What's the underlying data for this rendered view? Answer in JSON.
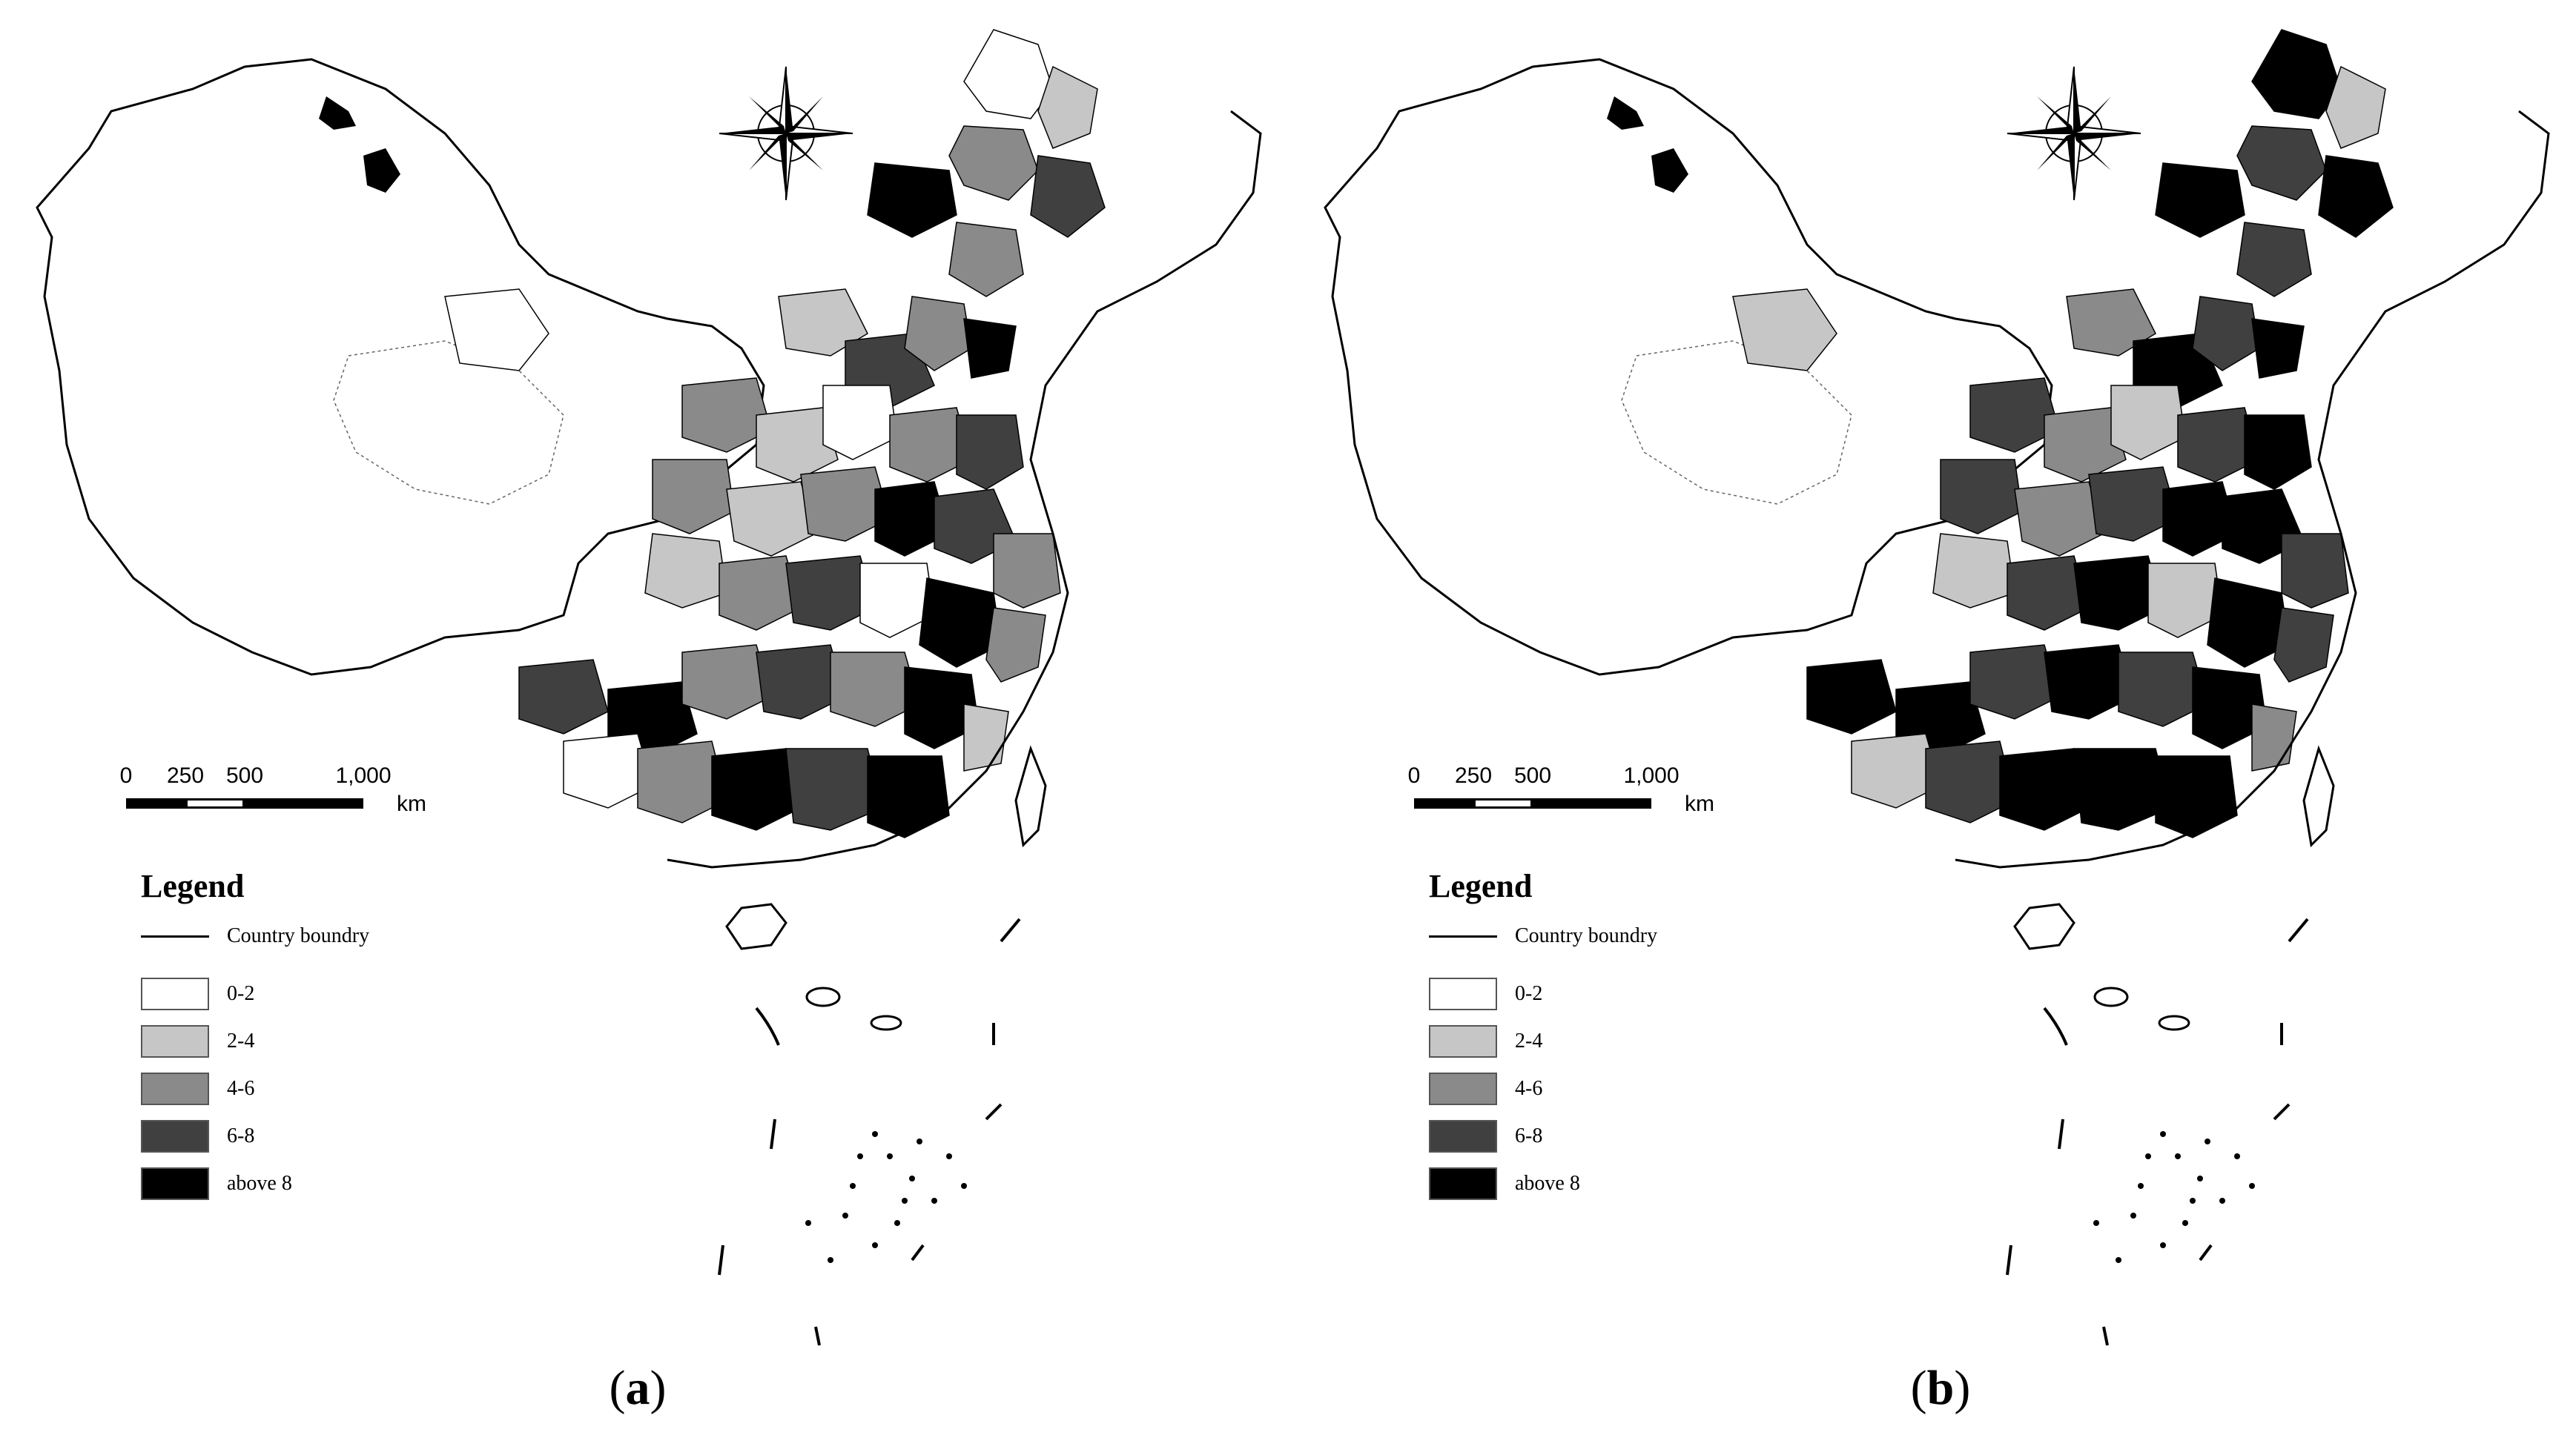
{
  "panels": [
    {
      "id": "a",
      "caption_open": "(",
      "caption_letter": "a",
      "caption_close": ")",
      "region_classes": [
        0,
        1,
        2,
        3,
        4,
        0,
        2,
        1,
        3,
        2,
        4,
        2,
        1,
        0,
        2,
        3,
        2,
        1,
        2,
        4,
        3,
        2,
        1,
        2,
        3,
        0,
        4,
        2,
        3,
        4,
        2,
        3,
        2,
        4,
        1,
        0,
        2,
        4,
        3,
        4
      ]
    },
    {
      "id": "b",
      "caption_open": "(",
      "caption_letter": "b",
      "caption_close": ")",
      "region_classes": [
        4,
        1,
        3,
        4,
        4,
        1,
        3,
        2,
        4,
        3,
        4,
        3,
        2,
        1,
        3,
        4,
        3,
        2,
        3,
        4,
        4,
        3,
        1,
        3,
        4,
        1,
        4,
        3,
        4,
        4,
        3,
        4,
        3,
        4,
        2,
        1,
        3,
        4,
        4,
        4
      ]
    }
  ],
  "scale_bar": {
    "ticks": [
      "0",
      "250",
      "500",
      "1,000"
    ],
    "unit": "km"
  },
  "legend": {
    "title": "Legend",
    "boundary_label": "Country boundry",
    "classes": [
      {
        "label": "0-2",
        "color": "#ffffff"
      },
      {
        "label": "2-4",
        "color": "#c6c6c6"
      },
      {
        "label": "4-6",
        "color": "#8a8a8a"
      },
      {
        "label": "6-8",
        "color": "#404040"
      },
      {
        "label": "above 8",
        "color": "#000000"
      }
    ]
  },
  "north_arrow": {
    "icon": "compass-rose-icon"
  }
}
